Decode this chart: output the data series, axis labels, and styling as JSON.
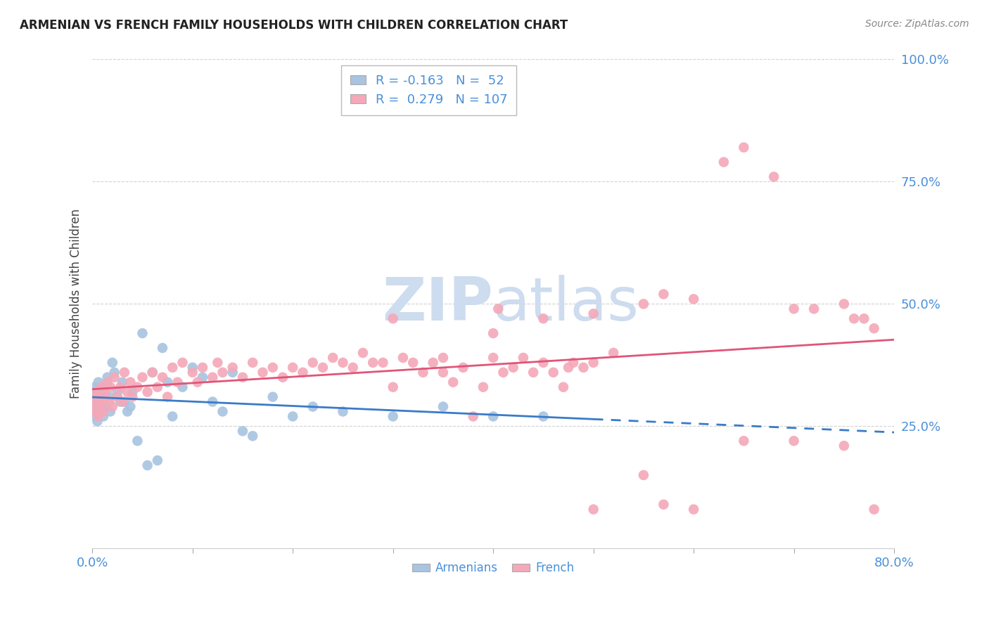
{
  "title": "ARMENIAN VS FRENCH FAMILY HOUSEHOLDS WITH CHILDREN CORRELATION CHART",
  "source": "Source: ZipAtlas.com",
  "ylabel": "Family Households with Children",
  "xlim": [
    0.0,
    80.0
  ],
  "ylim": [
    0.0,
    100.0
  ],
  "xtick_labels_show": [
    0.0,
    80.0
  ],
  "yticks": [
    25.0,
    50.0,
    75.0,
    100.0
  ],
  "xtick_minor": [
    10.0,
    20.0,
    30.0,
    40.0,
    50.0,
    60.0,
    70.0
  ],
  "armenian_color": "#a8c4e0",
  "french_color": "#f4a8b8",
  "armenian_line_color": "#3a7bc8",
  "french_line_color": "#e05578",
  "armenian_R": -0.163,
  "armenian_N": 52,
  "french_R": 0.279,
  "french_N": 107,
  "watermark": "ZIPatlas",
  "watermark_color": "#cddcee",
  "legend_label_armenian": "Armenians",
  "legend_label_french": "French",
  "tick_color": "#4a90d9",
  "armenian_line_solid_end": 50.0,
  "armenian_scatter": [
    [
      0.1,
      29.0
    ],
    [
      0.15,
      31.0
    ],
    [
      0.2,
      28.0
    ],
    [
      0.25,
      33.0
    ],
    [
      0.3,
      27.0
    ],
    [
      0.35,
      30.0
    ],
    [
      0.4,
      32.0
    ],
    [
      0.5,
      26.0
    ],
    [
      0.6,
      34.0
    ],
    [
      0.7,
      29.0
    ],
    [
      0.8,
      31.0
    ],
    [
      0.9,
      28.5
    ],
    [
      1.0,
      30.0
    ],
    [
      1.1,
      27.0
    ],
    [
      1.2,
      33.0
    ],
    [
      1.3,
      29.0
    ],
    [
      1.5,
      35.0
    ],
    [
      1.7,
      31.0
    ],
    [
      1.8,
      28.0
    ],
    [
      2.0,
      38.0
    ],
    [
      2.2,
      36.0
    ],
    [
      2.5,
      32.0
    ],
    [
      2.8,
      30.0
    ],
    [
      3.0,
      34.0
    ],
    [
      3.2,
      30.0
    ],
    [
      3.5,
      28.0
    ],
    [
      3.8,
      29.0
    ],
    [
      4.0,
      32.0
    ],
    [
      4.5,
      22.0
    ],
    [
      5.0,
      44.0
    ],
    [
      5.5,
      17.0
    ],
    [
      6.0,
      36.0
    ],
    [
      6.5,
      18.0
    ],
    [
      7.0,
      41.0
    ],
    [
      7.5,
      34.0
    ],
    [
      8.0,
      27.0
    ],
    [
      9.0,
      33.0
    ],
    [
      10.0,
      37.0
    ],
    [
      11.0,
      35.0
    ],
    [
      12.0,
      30.0
    ],
    [
      13.0,
      28.0
    ],
    [
      14.0,
      36.0
    ],
    [
      15.0,
      24.0
    ],
    [
      16.0,
      23.0
    ],
    [
      18.0,
      31.0
    ],
    [
      20.0,
      27.0
    ],
    [
      22.0,
      29.0
    ],
    [
      25.0,
      28.0
    ],
    [
      30.0,
      27.0
    ],
    [
      35.0,
      29.0
    ],
    [
      40.0,
      27.0
    ],
    [
      45.0,
      27.0
    ]
  ],
  "french_scatter": [
    [
      0.1,
      29.5
    ],
    [
      0.2,
      31.0
    ],
    [
      0.3,
      28.0
    ],
    [
      0.4,
      30.5
    ],
    [
      0.5,
      32.0
    ],
    [
      0.6,
      27.0
    ],
    [
      0.7,
      31.0
    ],
    [
      0.8,
      29.0
    ],
    [
      0.9,
      33.0
    ],
    [
      1.0,
      30.0
    ],
    [
      1.1,
      28.0
    ],
    [
      1.2,
      32.0
    ],
    [
      1.3,
      31.0
    ],
    [
      1.5,
      34.0
    ],
    [
      1.7,
      30.0
    ],
    [
      1.8,
      33.0
    ],
    [
      2.0,
      29.0
    ],
    [
      2.2,
      35.0
    ],
    [
      2.5,
      31.0
    ],
    [
      2.8,
      33.0
    ],
    [
      3.0,
      30.0
    ],
    [
      3.2,
      36.0
    ],
    [
      3.5,
      32.0
    ],
    [
      3.8,
      34.0
    ],
    [
      4.0,
      31.0
    ],
    [
      4.5,
      33.0
    ],
    [
      5.0,
      35.0
    ],
    [
      5.5,
      32.0
    ],
    [
      6.0,
      36.0
    ],
    [
      6.5,
      33.0
    ],
    [
      7.0,
      35.0
    ],
    [
      7.5,
      31.0
    ],
    [
      8.0,
      37.0
    ],
    [
      8.5,
      34.0
    ],
    [
      9.0,
      38.0
    ],
    [
      10.0,
      36.0
    ],
    [
      10.5,
      34.0
    ],
    [
      11.0,
      37.0
    ],
    [
      12.0,
      35.0
    ],
    [
      12.5,
      38.0
    ],
    [
      13.0,
      36.0
    ],
    [
      14.0,
      37.0
    ],
    [
      15.0,
      35.0
    ],
    [
      16.0,
      38.0
    ],
    [
      17.0,
      36.0
    ],
    [
      18.0,
      37.0
    ],
    [
      19.0,
      35.0
    ],
    [
      20.0,
      37.0
    ],
    [
      21.0,
      36.0
    ],
    [
      22.0,
      38.0
    ],
    [
      23.0,
      37.0
    ],
    [
      24.0,
      39.0
    ],
    [
      25.0,
      38.0
    ],
    [
      26.0,
      37.0
    ],
    [
      27.0,
      40.0
    ],
    [
      28.0,
      38.0
    ],
    [
      29.0,
      38.0
    ],
    [
      30.0,
      33.0
    ],
    [
      31.0,
      39.0
    ],
    [
      32.0,
      38.0
    ],
    [
      33.0,
      36.0
    ],
    [
      34.0,
      38.0
    ],
    [
      35.0,
      36.0
    ],
    [
      36.0,
      34.0
    ],
    [
      37.0,
      37.0
    ],
    [
      38.0,
      27.0
    ],
    [
      39.0,
      33.0
    ],
    [
      40.0,
      39.0
    ],
    [
      41.0,
      36.0
    ],
    [
      42.0,
      37.0
    ],
    [
      43.0,
      39.0
    ],
    [
      44.0,
      36.0
    ],
    [
      45.0,
      38.0
    ],
    [
      46.0,
      36.0
    ],
    [
      47.0,
      33.0
    ],
    [
      47.5,
      37.0
    ],
    [
      48.0,
      38.0
    ],
    [
      49.0,
      37.0
    ],
    [
      50.0,
      38.0
    ],
    [
      30.0,
      47.0
    ],
    [
      35.0,
      39.0
    ],
    [
      40.0,
      44.0
    ],
    [
      40.5,
      49.0
    ],
    [
      45.0,
      47.0
    ],
    [
      50.0,
      48.0
    ],
    [
      52.0,
      40.0
    ],
    [
      55.0,
      50.0
    ],
    [
      57.0,
      52.0
    ],
    [
      60.0,
      51.0
    ],
    [
      63.0,
      79.0
    ],
    [
      65.0,
      82.0
    ],
    [
      68.0,
      76.0
    ],
    [
      70.0,
      49.0
    ],
    [
      72.0,
      49.0
    ],
    [
      75.0,
      50.0
    ],
    [
      76.0,
      47.0
    ],
    [
      77.0,
      47.0
    ],
    [
      78.0,
      45.0
    ],
    [
      50.0,
      8.0
    ],
    [
      55.0,
      15.0
    ],
    [
      57.0,
      9.0
    ],
    [
      60.0,
      8.0
    ],
    [
      65.0,
      22.0
    ],
    [
      70.0,
      22.0
    ],
    [
      75.0,
      21.0
    ],
    [
      78.0,
      8.0
    ]
  ]
}
